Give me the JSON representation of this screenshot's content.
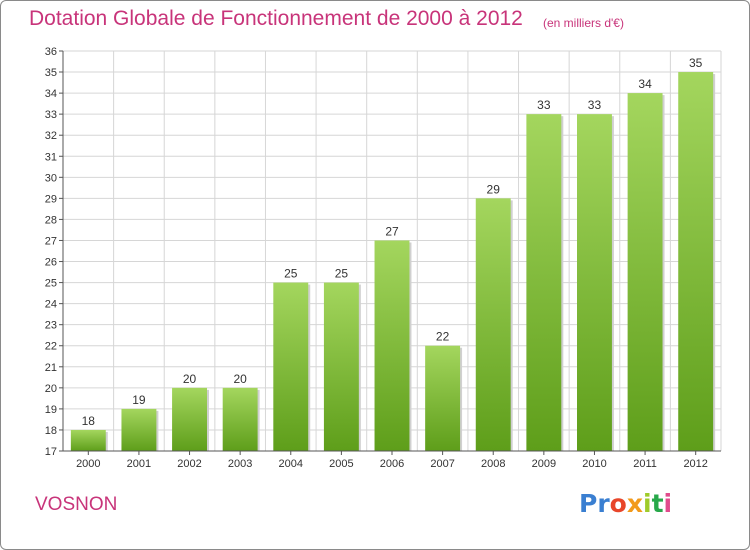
{
  "chart_data": {
    "type": "bar",
    "title": "Dotation Globale de Fonctionnement de 2000 à 2012",
    "subtitle": "(en milliers d'€)",
    "xlabel": "",
    "ylabel": "",
    "categories": [
      "2000",
      "2001",
      "2002",
      "2003",
      "2004",
      "2005",
      "2006",
      "2007",
      "2008",
      "2009",
      "2010",
      "2011",
      "2012"
    ],
    "values": [
      18,
      19,
      20,
      20,
      25,
      25,
      27,
      22,
      29,
      33,
      33,
      34,
      35
    ],
    "ylim": [
      17,
      36
    ],
    "yticks": [
      17,
      18,
      19,
      20,
      21,
      22,
      23,
      24,
      25,
      26,
      27,
      28,
      29,
      30,
      31,
      32,
      33,
      34,
      35,
      36
    ],
    "grid": true,
    "bar_color_top": "#a4d65e",
    "bar_color_bottom": "#5e9e1a"
  },
  "labels": {
    "commune": "VOSNON",
    "brand": [
      "Pr",
      "o",
      "x",
      "i",
      "t",
      "i"
    ]
  },
  "colors": {
    "title": "#c8347a",
    "grid": "#d6d6d6",
    "axis": "#555555"
  }
}
